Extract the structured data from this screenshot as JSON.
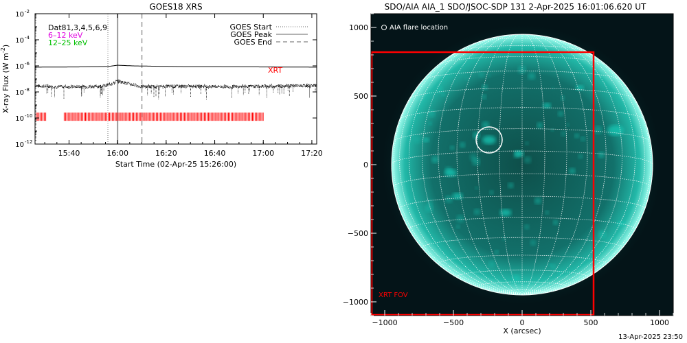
{
  "chart_data": [
    {
      "type": "line",
      "title": "GOES18 XRS",
      "xlabel": "Start Time (02-Apr-25 15:26:00)",
      "ylabel": "X-ray Flux (W m",
      "ylabel_sup": "-2",
      "ylabel_close": ")",
      "xlim_min": [
        0,
        116
      ],
      "ylog": true,
      "ylim_exp": [
        -12,
        -2
      ],
      "x_ticks": [
        {
          "min": 14,
          "label": "15:40"
        },
        {
          "min": 34,
          "label": "16:00"
        },
        {
          "min": 54,
          "label": "16:20"
        },
        {
          "min": 74,
          "label": "16:40"
        },
        {
          "min": 94,
          "label": "17:00"
        },
        {
          "min": 114,
          "label": "17:20"
        }
      ],
      "y_ticks": [
        {
          "exp": -2,
          "label": "10",
          "sup": "-2"
        },
        {
          "exp": -4,
          "label": "10",
          "sup": "-4"
        },
        {
          "exp": -6,
          "label": "10",
          "sup": "-6"
        },
        {
          "exp": -8,
          "label": "10",
          "sup": "-8"
        },
        {
          "exp": -10,
          "label": "10",
          "sup": "-10"
        },
        {
          "exp": -12,
          "label": "10",
          "sup": "-12"
        }
      ],
      "header_text": "Dat81,3,4,5,6,9",
      "channels": [
        {
          "label": "6–12 keV",
          "color": "#e000e0"
        },
        {
          "label": "12–25 keV",
          "color": "#00c000"
        }
      ],
      "legend": [
        {
          "label": "GOES Start",
          "style": "dotted"
        },
        {
          "label": "GOES Peak",
          "style": "solid"
        },
        {
          "label": "GOES End",
          "style": "dashed"
        }
      ],
      "events_min": {
        "start": 30,
        "peak": 34,
        "end": 44
      },
      "series": [
        {
          "values_exp": [
            [
              0,
              -6.1
            ],
            [
              20,
              -6.08
            ],
            [
              30,
              -6.05
            ],
            [
              34,
              -5.95
            ],
            [
              40,
              -6.0
            ],
            [
              60,
              -6.06
            ],
            [
              90,
              -6.08
            ],
            [
              116,
              -6.1
            ]
          ]
        },
        {
          "values_exp": [
            [
              0,
              -7.55
            ],
            [
              10,
              -7.6
            ],
            [
              20,
              -7.6
            ],
            [
              28,
              -7.55
            ],
            [
              32,
              -7.35
            ],
            [
              34,
              -7.15
            ],
            [
              38,
              -7.35
            ],
            [
              44,
              -7.6
            ],
            [
              60,
              -7.55
            ],
            [
              80,
              -7.6
            ],
            [
              100,
              -7.55
            ],
            [
              116,
              -7.5
            ]
          ]
        }
      ],
      "xrt_label": "XRT",
      "xrt_color": "#ff0000",
      "xrt_coverage_min": [
        [
          0,
          4.5
        ],
        [
          12,
          94
        ]
      ]
    },
    {
      "type": "image",
      "title": "SDO/AIA AIA_1 SDO/JSOC-SDP 131  2-Apr-2025 16:01:06.620 UT",
      "xlabel": "X (arcsec)",
      "xlim": [
        -1100,
        1100
      ],
      "ylim": [
        -1100,
        1100
      ],
      "x_ticks": [
        -1000,
        -500,
        0,
        500,
        1000
      ],
      "y_ticks": [
        -1000,
        -500,
        0,
        500,
        1000
      ],
      "legend_text": "AIA flare location",
      "fov_label": "XRT FOV",
      "fov_color": "#ff0000",
      "disk_color": "#12c9b6",
      "background_color": "#041418",
      "solar_radius_arcsec": 950,
      "flare_location_arcsec": [
        -240,
        180
      ],
      "flare_circle_radius_arcsec": 95,
      "fov_arcsec": {
        "x": [
          -1100,
          520
        ],
        "y": [
          -1100,
          820
        ]
      }
    }
  ],
  "footer": {
    "timestamp": "13-Apr-2025 23:50"
  }
}
